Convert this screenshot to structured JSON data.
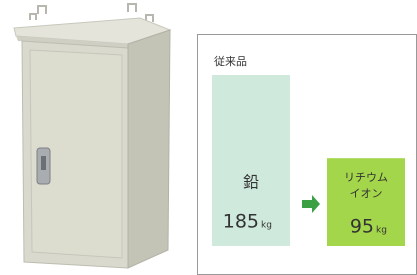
{
  "chart_data": {
    "type": "bar",
    "annotation": "従来品",
    "categories": [
      "鉛",
      "リチウム\nイオン"
    ],
    "values": [
      185,
      95
    ],
    "unit": "kg",
    "colors": [
      "#cfeadc",
      "#a3d64a"
    ],
    "arrow_color": "#3aa043"
  }
}
